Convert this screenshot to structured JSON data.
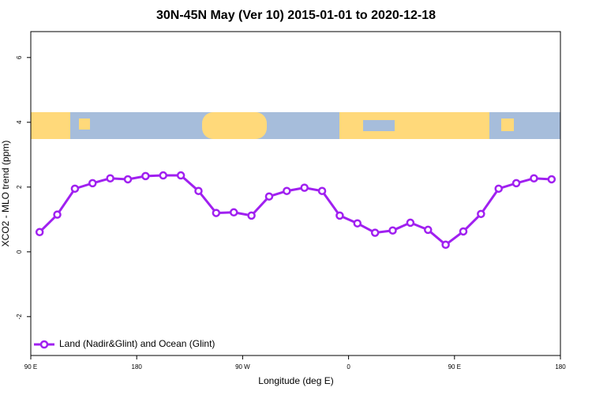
{
  "chart_data": {
    "type": "line",
    "title": "30N-45N May (Ver 10)   2015-01-01 to 2020-12-18",
    "x_label": "Longitude (deg E)",
    "y_label": "XCO2 - MLO trend (ppm)",
    "x": [
      97.5,
      112.5,
      127.5,
      142.5,
      157.5,
      172.5,
      187.5,
      202.5,
      217.5,
      232.5,
      247.5,
      262.5,
      277.5,
      292.5,
      307.5,
      322.5,
      337.5,
      352.5,
      367.5,
      382.5,
      397.5,
      412.5,
      427.5,
      442.5,
      457.5,
      472.5,
      487.5,
      502.5,
      517.5,
      532.5
    ],
    "series": [
      {
        "name": "Land (Nadir&Glint) and Ocean (Glint)",
        "color": "#a020f0",
        "values": [
          0.61,
          1.15,
          1.95,
          2.12,
          2.27,
          2.24,
          2.34,
          2.36,
          2.36,
          1.88,
          1.2,
          1.22,
          1.12,
          1.71,
          1.88,
          1.98,
          1.88,
          1.12,
          0.88,
          0.59,
          0.66,
          0.9,
          0.68,
          0.22,
          0.63,
          1.17,
          1.95,
          2.12,
          2.27,
          2.24
        ]
      }
    ],
    "xlim": [
      90,
      540
    ],
    "xticks": [
      {
        "value": 90,
        "label": "90 E"
      },
      180,
      {
        "value": 270,
        "label": "90 W"
      },
      {
        "value": 360,
        "label": "0"
      },
      {
        "value": 450,
        "label": "90 E"
      },
      {
        "value": 540,
        "label": "180"
      }
    ],
    "ylim": [
      -3.2,
      6.8
    ],
    "yticks": [
      -2,
      0,
      2,
      4,
      6
    ],
    "legend": "bottom-left"
  }
}
